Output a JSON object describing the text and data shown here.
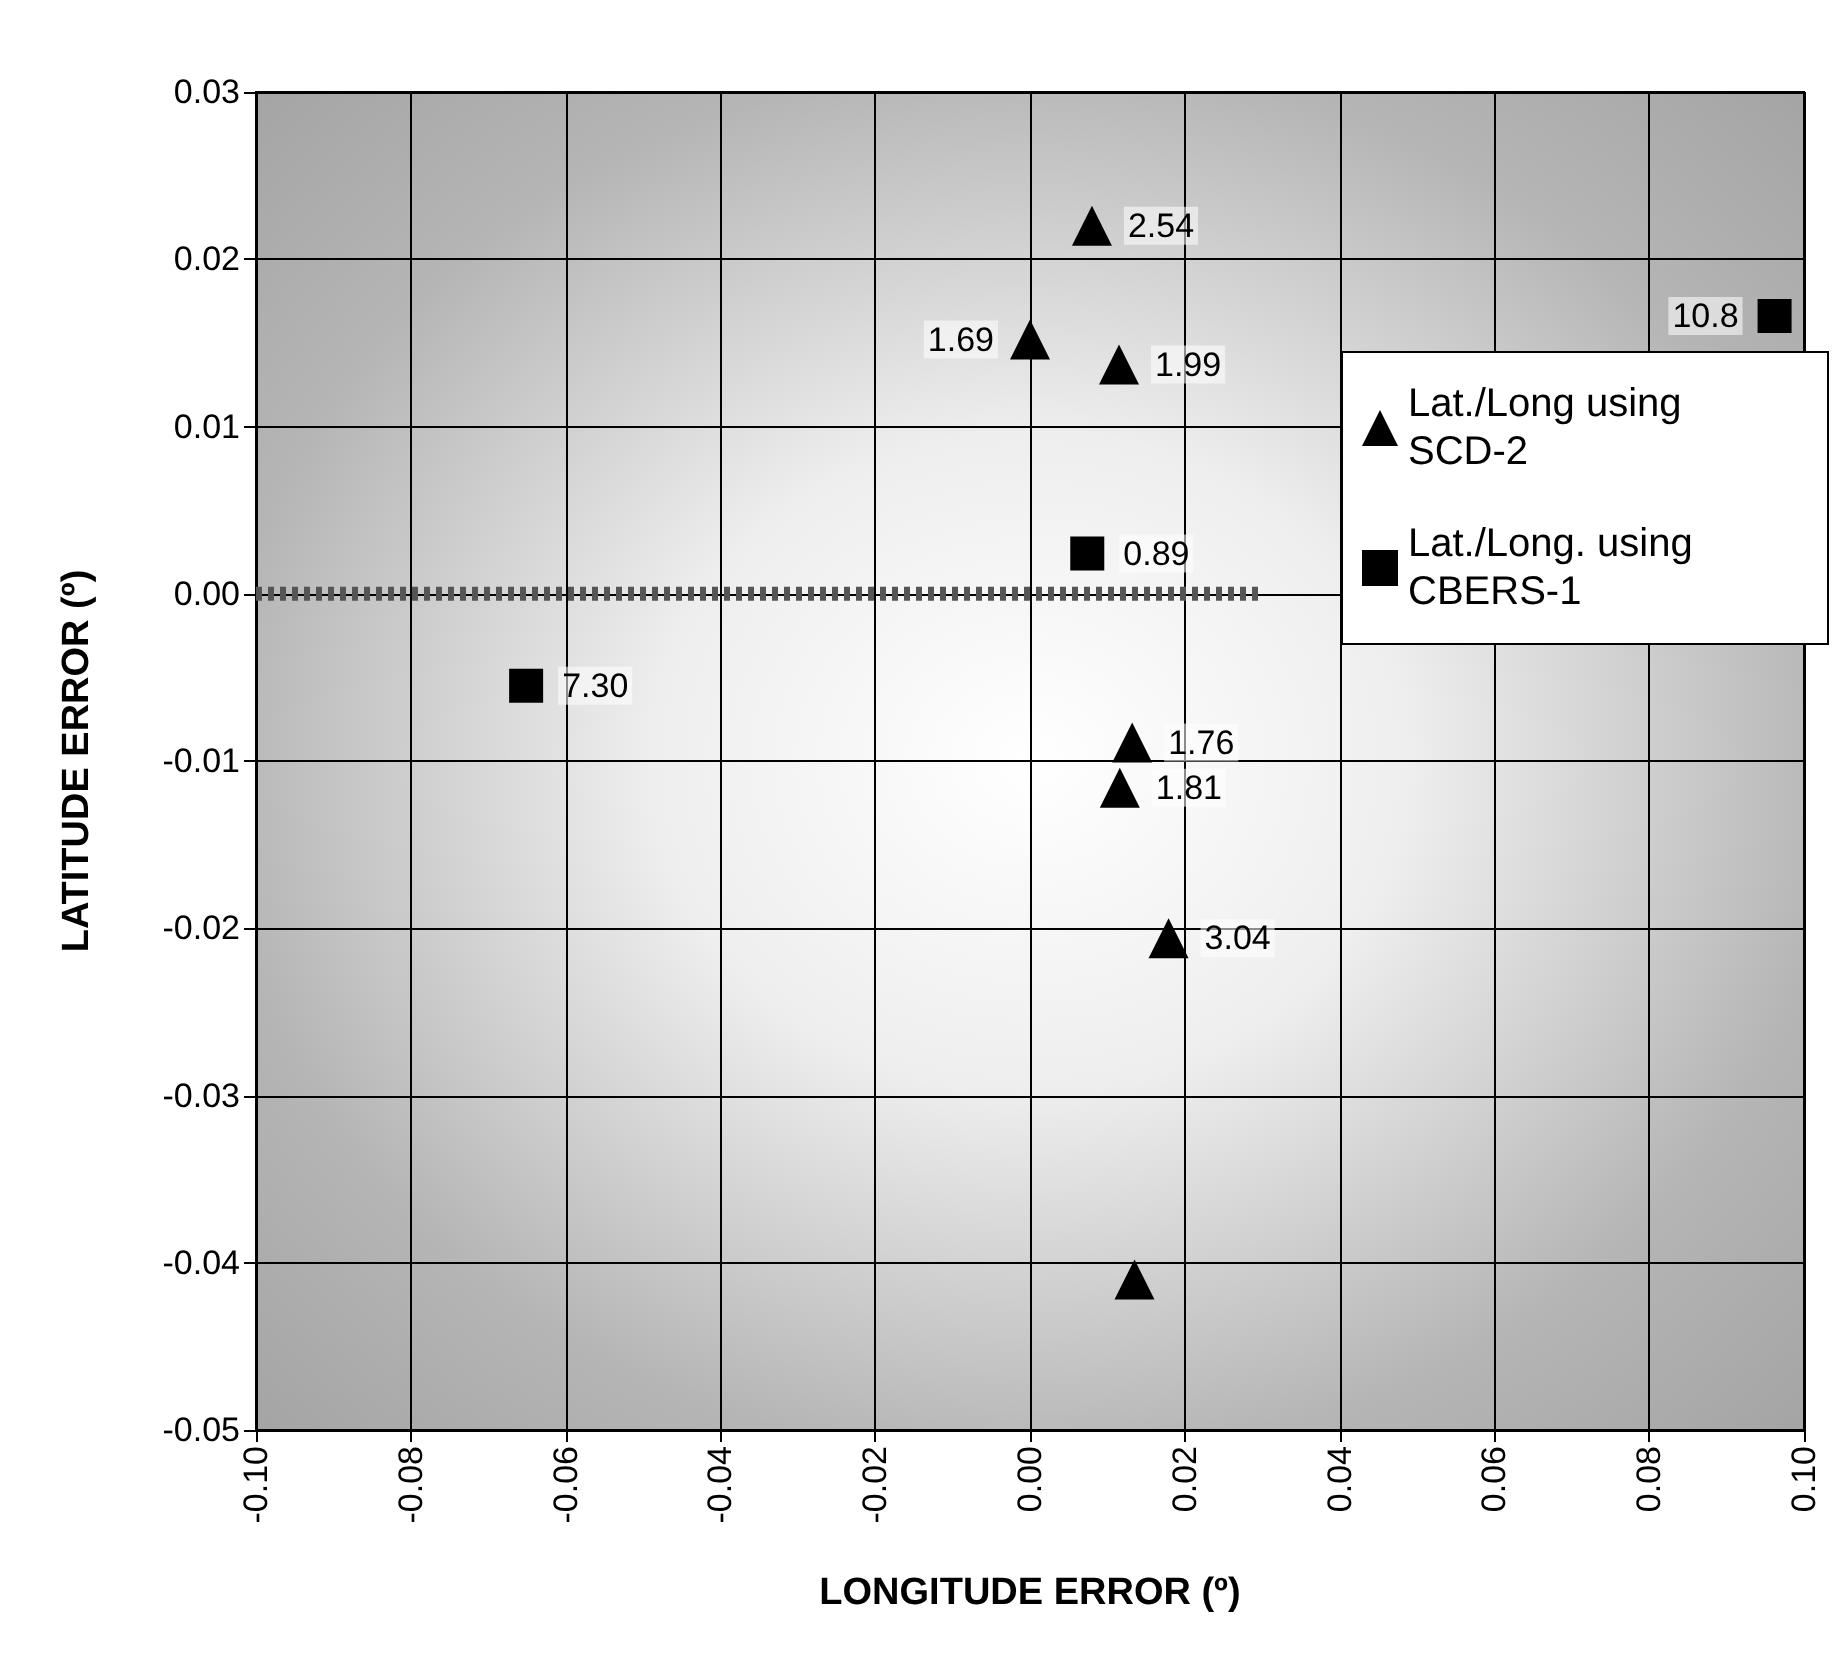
{
  "chart_data": {
    "type": "scatter",
    "xlabel": "LONGITUDE ERROR (º)",
    "ylabel": "LATITUDE ERROR (º)",
    "xlim": [
      -0.1,
      0.1
    ],
    "xticks": [
      {
        "value": -0.1,
        "label": "-0.10"
      },
      {
        "value": -0.08,
        "label": "-0.08"
      },
      {
        "value": -0.06,
        "label": "-0.06"
      },
      {
        "value": -0.04,
        "label": "-0.04"
      },
      {
        "value": -0.02,
        "label": "-0.02"
      },
      {
        "value": 0,
        "label": "0.00"
      },
      {
        "value": 0.02,
        "label": "0.02"
      },
      {
        "value": 0.04,
        "label": "0.04"
      },
      {
        "value": 0.06,
        "label": "0.06"
      },
      {
        "value": 0.08,
        "label": "0.08"
      },
      {
        "value": 0.1,
        "label": "0.10"
      }
    ],
    "ylim": [
      -0.05,
      0.03
    ],
    "yticks": [
      {
        "value": -0.05,
        "label": "-0.05"
      },
      {
        "value": -0.04,
        "label": "-0.04"
      },
      {
        "value": -0.03,
        "label": "-0.03"
      },
      {
        "value": -0.02,
        "label": "-0.02"
      },
      {
        "value": -0.01,
        "label": "-0.01"
      },
      {
        "value": 0,
        "label": "0.00"
      },
      {
        "value": 0.01,
        "label": "0.01"
      },
      {
        "value": 0.02,
        "label": "0.02"
      },
      {
        "value": 0.03,
        "label": "0.03"
      }
    ],
    "grid": true,
    "legend": "right",
    "annotations": [
      {
        "text": "2.54",
        "x": 0.008,
        "y": 0.022
      },
      {
        "text": "1.69",
        "x": 0.0,
        "y": 0.0152
      },
      {
        "text": "1.99",
        "x": 0.0115,
        "y": 0.0137
      },
      {
        "text": "1.76",
        "x": 0.0132,
        "y": -0.0089
      },
      {
        "text": "1.81",
        "x": 0.0116,
        "y": -0.0116
      },
      {
        "text": "3.04",
        "x": 0.0179,
        "y": -0.0206
      },
      {
        "text": "0.89",
        "x": 0.0074,
        "y": 0.0024
      },
      {
        "text": "10.8",
        "x": 0.0962,
        "y": 0.0166
      },
      {
        "text": "7.30",
        "x": -0.0651,
        "y": -0.0055
      }
    ],
    "series": [
      {
        "name": "Lat./Long using SCD-2",
        "color": "#000000",
        "marker": "triangle",
        "x": [
          0.008,
          0.0,
          0.0115,
          0.0132,
          0.0116,
          0.0179,
          0.0135
        ],
        "values": [
          0.022,
          0.0152,
          0.0137,
          -0.0089,
          -0.0116,
          -0.0206,
          -0.041
        ]
      },
      {
        "name": "Lat./Long. using CBERS-1",
        "color": "#000000",
        "marker": "square",
        "x": [
          0.0074,
          0.0962,
          -0.0651
        ],
        "values": [
          0.0024,
          0.0166,
          -0.0055
        ]
      },
      {
        "type": "line",
        "color": "#555555",
        "line_style": "dotted",
        "marker": "none",
        "x": [
          -0.1,
          0.03
        ],
        "values": [
          0,
          0
        ]
      }
    ]
  }
}
